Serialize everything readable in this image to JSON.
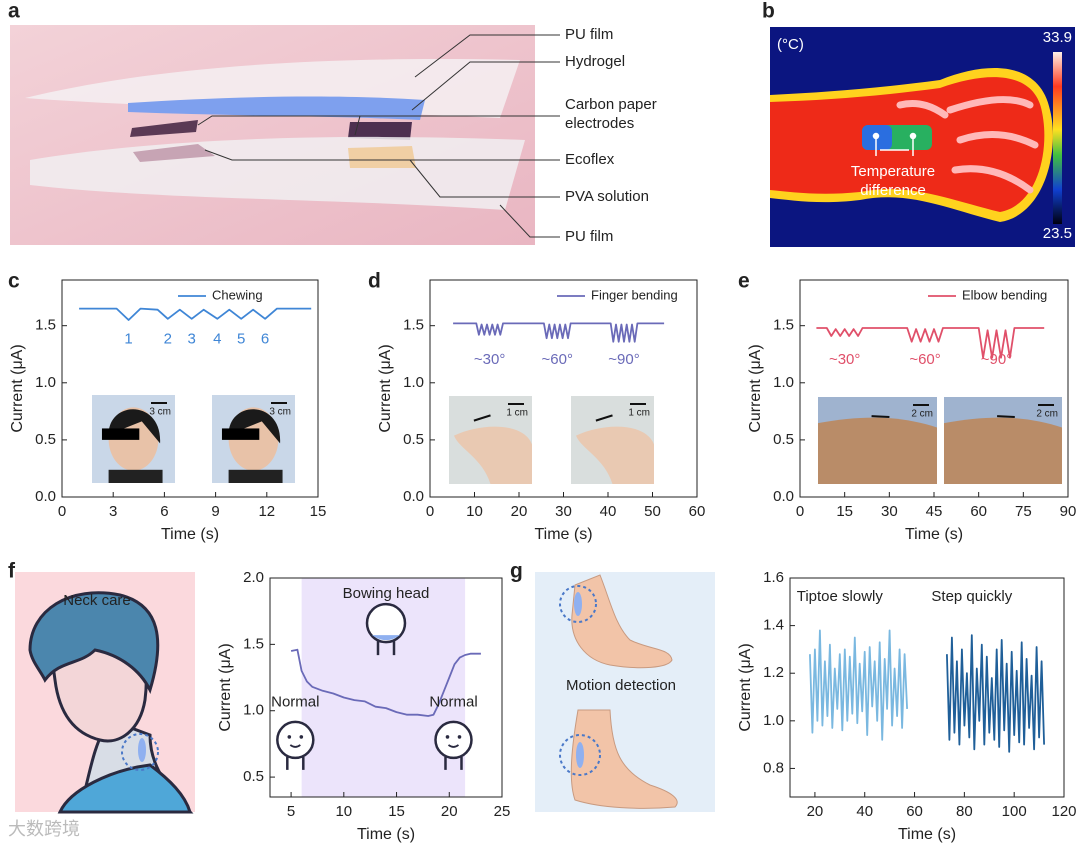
{
  "panel_labels": [
    "a",
    "b",
    "c",
    "d",
    "e",
    "f",
    "g"
  ],
  "panel_a": {
    "labels": [
      "PU film",
      "Hydrogel",
      "Carbon paper electrodes",
      "Ecoflex",
      "PVA solution",
      "PU film"
    ]
  },
  "panel_b": {
    "unit": "(°C)",
    "max": 33.9,
    "min": 23.5,
    "annotation": "Temperature difference"
  },
  "panel_f": {
    "text": "Neck care"
  },
  "panel_g": {
    "text": "Motion detection"
  },
  "watermark": "大数跨境",
  "chart_data": [
    {
      "type": "line",
      "xlabel": "Time (s)",
      "ylabel": "Current (μA)",
      "xlim": [
        0,
        15
      ],
      "xticks": [
        0,
        3,
        6,
        9,
        12,
        15
      ],
      "ylim": [
        0,
        1.9
      ],
      "yticks": [
        {
          "value": 0,
          "label": "0.0"
        },
        0.5,
        {
          "value": 1,
          "label": "1.0"
        },
        1.5
      ],
      "legend": "upper right",
      "series": [
        {
          "name": "Chewing",
          "color": "#3f86d6",
          "x": [
            1,
            3.2,
            3.9,
            4.6,
            5.6,
            6.2,
            6.9,
            7.6,
            8.3,
            9.1,
            9.8,
            10.5,
            11.2,
            11.9,
            12.6,
            14.6
          ],
          "values": [
            1.65,
            1.65,
            1.55,
            1.65,
            1.64,
            1.56,
            1.64,
            1.56,
            1.64,
            1.56,
            1.64,
            1.56,
            1.64,
            1.56,
            1.65,
            1.65
          ]
        }
      ],
      "annotations": [
        "1",
        "2",
        "3",
        "4",
        "5",
        "6"
      ],
      "insets": [
        "3 cm",
        "3 cm"
      ]
    },
    {
      "type": "line",
      "xlabel": "Time (s)",
      "ylabel": "Current (μA)",
      "xlim": [
        0,
        60
      ],
      "xticks": [
        0,
        10,
        20,
        30,
        40,
        50,
        60
      ],
      "ylim": [
        0,
        1.9
      ],
      "yticks": [
        {
          "value": 0,
          "label": "0.0"
        },
        0.5,
        {
          "value": 1,
          "label": "1.0"
        },
        1.5
      ],
      "legend": "upper right",
      "series": [
        {
          "name": "Finger bending",
          "color": "#6a6ab8",
          "x": [
            5.2,
            10.4,
            11,
            11.6,
            12.2,
            12.8,
            13.4,
            14,
            14.6,
            15.2,
            15.8,
            16.4,
            25.6,
            26.2,
            26.8,
            27.4,
            28,
            28.6,
            29.2,
            29.8,
            30.4,
            31,
            31.6,
            40.6,
            41.2,
            41.8,
            42.4,
            43,
            43.6,
            44.2,
            44.8,
            45.4,
            46,
            46.6,
            52.6
          ],
          "values": [
            1.52,
            1.52,
            1.42,
            1.51,
            1.42,
            1.51,
            1.42,
            1.51,
            1.42,
            1.51,
            1.42,
            1.52,
            1.52,
            1.39,
            1.51,
            1.39,
            1.51,
            1.39,
            1.51,
            1.39,
            1.51,
            1.39,
            1.52,
            1.52,
            1.36,
            1.51,
            1.36,
            1.51,
            1.36,
            1.51,
            1.36,
            1.51,
            1.36,
            1.52,
            1.52
          ]
        }
      ],
      "annotations": [
        "~30°",
        "~60°",
        "~90°"
      ],
      "insets": [
        "1 cm",
        "1 cm"
      ]
    },
    {
      "type": "line",
      "xlabel": "Time (s)",
      "ylabel": "Current (μA)",
      "xlim": [
        0,
        90
      ],
      "xticks": [
        0,
        15,
        30,
        45,
        60,
        75,
        90
      ],
      "ylim": [
        0,
        1.9
      ],
      "yticks": [
        {
          "value": 0,
          "label": "0.0"
        },
        0.5,
        {
          "value": 1,
          "label": "1.0"
        },
        1.5
      ],
      "legend": "upper right",
      "series": [
        {
          "name": "Elbow bending",
          "color": "#e0506a",
          "x": [
            5.5,
            9,
            10.5,
            12,
            13.5,
            15,
            16.5,
            18,
            19.5,
            21,
            36,
            37.5,
            39,
            40.5,
            42,
            43.5,
            45,
            46.5,
            48,
            60,
            61.5,
            63,
            64.5,
            66,
            67.5,
            69,
            70.5,
            72,
            82
          ],
          "values": [
            1.48,
            1.48,
            1.41,
            1.47,
            1.41,
            1.47,
            1.41,
            1.47,
            1.41,
            1.48,
            1.48,
            1.36,
            1.47,
            1.36,
            1.47,
            1.36,
            1.47,
            1.36,
            1.48,
            1.48,
            1.22,
            1.46,
            1.22,
            1.46,
            1.22,
            1.46,
            1.22,
            1.48,
            1.48
          ]
        }
      ],
      "annotations": [
        "~30°",
        "~60°",
        "~90°"
      ],
      "insets": [
        "2 cm",
        "2 cm"
      ]
    },
    {
      "type": "line",
      "xlabel": "Time (s)",
      "ylabel": "Current (μA)",
      "xlim": [
        3,
        25
      ],
      "xticks": [
        5,
        10,
        15,
        20,
        25
      ],
      "ylim": [
        0.35,
        2
      ],
      "yticks": [
        0.5,
        {
          "value": 1,
          "label": "1.0"
        },
        1.5,
        {
          "value": 2,
          "label": "2.0"
        }
      ],
      "highlight_x": [
        6,
        21.5
      ],
      "highlight_color": "#ece4fb",
      "series": [
        {
          "color": "#6a6ab8",
          "x": [
            5,
            5.6,
            6,
            6.5,
            7,
            8,
            9,
            10,
            11,
            12,
            13,
            14,
            15,
            16,
            17,
            18,
            18.5,
            19,
            19.5,
            20,
            20.5,
            21,
            21.5,
            22,
            23
          ],
          "values": [
            1.45,
            1.46,
            1.3,
            1.22,
            1.18,
            1.15,
            1.13,
            1.1,
            1.08,
            1.07,
            1.03,
            1.02,
            0.99,
            0.97,
            0.97,
            0.96,
            0.97,
            1.05,
            1.15,
            1.25,
            1.35,
            1.4,
            1.42,
            1.43,
            1.43
          ]
        }
      ],
      "annotations": [
        "Bowing head",
        "Normal",
        "Normal"
      ]
    },
    {
      "type": "line",
      "xlabel": "Time (s)",
      "ylabel": "Current (μA)",
      "xlim": [
        10,
        120
      ],
      "xticks": [
        20,
        40,
        60,
        80,
        100,
        120
      ],
      "ylim": [
        0.68,
        1.6
      ],
      "yticks": [
        0.8,
        {
          "value": 1,
          "label": "1.0"
        },
        1.2,
        1.4,
        1.6
      ],
      "series": [
        {
          "color": "#7ab8e0",
          "x": [
            18,
            19,
            20,
            21,
            22,
            23,
            24,
            25,
            26,
            27,
            28,
            29,
            30,
            31,
            32,
            33,
            34,
            35,
            36,
            37,
            38,
            39,
            40,
            41,
            42,
            43,
            44,
            45,
            46,
            47,
            48,
            49,
            50,
            51,
            52,
            53,
            54,
            55,
            56,
            57
          ],
          "values": [
            1.28,
            0.95,
            1.3,
            1.0,
            1.38,
            0.98,
            1.25,
            1.02,
            1.32,
            0.97,
            1.22,
            1.05,
            1.28,
            0.96,
            1.3,
            1.0,
            1.27,
            1.03,
            1.35,
            0.99,
            1.24,
            1.04,
            1.29,
            0.94,
            1.31,
            1.06,
            1.25,
            1.0,
            1.33,
            0.92,
            1.26,
            1.05,
            1.38,
            0.98,
            1.22,
            1.02,
            1.3,
            0.97,
            1.28,
            1.05
          ]
        },
        {
          "color": "#1f5f99",
          "x": [
            73,
            74,
            75,
            76,
            77,
            78,
            79,
            80,
            81,
            82,
            83,
            84,
            85,
            86,
            87,
            88,
            89,
            90,
            91,
            92,
            93,
            94,
            95,
            96,
            97,
            98,
            99,
            100,
            101,
            102,
            103,
            104,
            105,
            106,
            107,
            108,
            109,
            110,
            111,
            112
          ],
          "values": [
            1.28,
            0.92,
            1.35,
            0.95,
            1.25,
            0.9,
            1.3,
            0.98,
            1.2,
            0.93,
            1.36,
            0.88,
            1.22,
            1.0,
            1.32,
            0.9,
            1.27,
            0.95,
            1.18,
            0.92,
            1.3,
            0.89,
            1.34,
            0.96,
            1.24,
            0.87,
            1.29,
            0.94,
            1.21,
            0.91,
            1.33,
            0.9,
            1.26,
            0.97,
            1.19,
            0.88,
            1.31,
            0.93,
            1.25,
            0.9
          ]
        }
      ],
      "annotations": [
        "Tiptoe slowly",
        "Step quickly"
      ]
    }
  ]
}
